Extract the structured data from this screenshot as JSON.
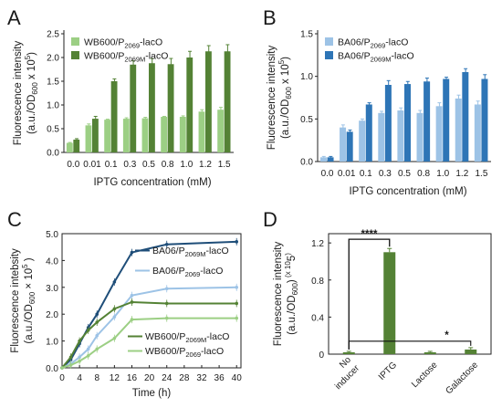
{
  "colors": {
    "green_light": "#9ccf84",
    "green_dark": "#548235",
    "blue_light": "#9dc3e6",
    "blue_dark": "#2e75b6",
    "blue_navy": "#1f4e79",
    "axis": "#222222"
  },
  "chart_data": [
    {
      "panel": "A",
      "type": "bar",
      "categories": [
        "0.0",
        "0.01",
        "0.1",
        "0.3",
        "0.5",
        "0.8",
        "1.0",
        "1.2",
        "1.5"
      ],
      "xlabel": "IPTG concentration (mM)",
      "ylabel": [
        "Fluorescence  intensity",
        "(a.u./OD",
        "600",
        " x 10",
        "5",
        ")"
      ],
      "ylim": [
        0,
        2.5
      ],
      "yticks": [
        "0.0",
        "0.5",
        "1.0",
        "1.5",
        "2.0",
        "2.5"
      ],
      "legend_position": "top-left",
      "series": [
        {
          "name": "WB600/P2069-lacO",
          "name_base": "WB600/P",
          "name_sub": "2069",
          "name_end": "-lacO",
          "color": "green_light",
          "values": [
            0.2,
            0.57,
            0.69,
            0.71,
            0.72,
            0.75,
            0.75,
            0.86,
            0.9
          ],
          "errors": [
            0.01,
            0.03,
            0.01,
            0.02,
            0.02,
            0.01,
            0.02,
            0.04,
            0.05
          ]
        },
        {
          "name": "WB600/P2069M-lacO",
          "name_base": "WB600/P",
          "name_sub": "2069M",
          "name_end": "-lacO",
          "color": "green_dark",
          "values": [
            0.27,
            0.71,
            1.5,
            1.85,
            1.88,
            1.86,
            2.0,
            2.13,
            2.13
          ],
          "errors": [
            0.02,
            0.05,
            0.05,
            0.08,
            0.1,
            0.12,
            0.13,
            0.12,
            0.14
          ]
        }
      ]
    },
    {
      "panel": "B",
      "type": "bar",
      "categories": [
        "0.0",
        "0.01",
        "0.1",
        "0.3",
        "0.5",
        "0.8",
        "1.0",
        "1.2",
        "1.5"
      ],
      "xlabel": "IPTG concentration (mM)",
      "ylabel": [
        "Fluorescence  intensity",
        "(a.u./OD",
        "600",
        " x 10",
        "5",
        ")"
      ],
      "ylim": [
        0,
        1.5
      ],
      "yticks": [
        "0.0",
        "0.5",
        "1.0",
        "1.5"
      ],
      "legend_position": "top-left",
      "series": [
        {
          "name": "BA06/P2069-lacO",
          "name_base": "BA06/P",
          "name_sub": "2069",
          "name_end": "-lacO",
          "color": "blue_light",
          "values": [
            0.05,
            0.4,
            0.48,
            0.57,
            0.6,
            0.57,
            0.65,
            0.74,
            0.67
          ],
          "errors": [
            0.01,
            0.03,
            0.02,
            0.02,
            0.03,
            0.03,
            0.04,
            0.04,
            0.04
          ]
        },
        {
          "name": "BA06/P2069M-lacO",
          "name_base": "BA06/P",
          "name_sub": "2069M",
          "name_end": "-lacO",
          "color": "blue_dark",
          "values": [
            0.05,
            0.35,
            0.67,
            0.9,
            0.91,
            0.94,
            0.97,
            1.05,
            0.97
          ],
          "errors": [
            0.01,
            0.02,
            0.02,
            0.05,
            0.03,
            0.04,
            0.02,
            0.04,
            0.05
          ]
        }
      ]
    },
    {
      "panel": "C",
      "type": "line",
      "xlabel": "Time (h)",
      "ylabel": [
        "Fluorescence intebsity",
        "(a.u./OD",
        "600",
        " × 10",
        "5",
        " )"
      ],
      "xlim": [
        0,
        41
      ],
      "ylim": [
        0,
        5.0
      ],
      "xticks": [
        "0",
        "4",
        "8",
        "12",
        "16",
        "20",
        "24",
        "28",
        "32",
        "36",
        "40"
      ],
      "yticks": [
        "0.0",
        "1.0",
        "2.0",
        "3.0",
        "4.0",
        "5.0"
      ],
      "series": [
        {
          "name": "BA06/P2069M-lacO",
          "name_base": "BA06/P",
          "name_sub": "2069M",
          "name_end": "-lacO",
          "color": "blue_navy",
          "x": [
            0,
            2,
            4,
            6,
            8,
            12,
            16,
            24,
            40
          ],
          "y": [
            0,
            0.3,
            0.9,
            1.5,
            2.0,
            3.2,
            4.3,
            4.6,
            4.7
          ]
        },
        {
          "name": "BA06/P2069-lacO",
          "name_base": "BA06/P",
          "name_sub": "2069",
          "name_end": "-lacO",
          "color": "blue_light",
          "x": [
            0,
            2,
            4,
            6,
            8,
            12,
            16,
            24,
            40
          ],
          "y": [
            0,
            0.15,
            0.4,
            0.7,
            1.2,
            1.9,
            2.7,
            2.95,
            3.0
          ]
        },
        {
          "name": "WB600/P2069M-lacO",
          "name_base": "WB600/P",
          "name_sub": "2069M",
          "name_end": "-lacO",
          "color": "green_dark",
          "x": [
            0,
            2,
            4,
            6,
            8,
            12,
            16,
            24,
            40
          ],
          "y": [
            0,
            0.4,
            1.0,
            1.4,
            1.7,
            2.2,
            2.45,
            2.4,
            2.4
          ]
        },
        {
          "name": "WB600/P2069-lacO",
          "name_base": "WB600/P",
          "name_sub": "2069",
          "name_end": "-lacO",
          "color": "green_light",
          "x": [
            0,
            2,
            4,
            6,
            8,
            12,
            16,
            24,
            40
          ],
          "y": [
            0,
            0.1,
            0.25,
            0.45,
            0.7,
            1.1,
            1.8,
            1.85,
            1.85
          ]
        }
      ]
    },
    {
      "panel": "D",
      "type": "bar",
      "categories": [
        "No\ninducer",
        "IPTG",
        "Lactose",
        "Galactose"
      ],
      "ylabel": [
        "Fluorescence  intensity",
        "(a.u./OD",
        "600",
        ")",
        " (x 10",
        "5",
        ")"
      ],
      "ylim": [
        0,
        1.3
      ],
      "yticks": [
        "0",
        "0.4",
        "0.8",
        "1.2"
      ],
      "values": [
        0.02,
        1.1,
        0.02,
        0.05
      ],
      "errors": [
        0.01,
        0.04,
        0.01,
        0.02
      ],
      "color": "green_dark",
      "annotations": [
        {
          "label": "****",
          "between": [
            "No\ninducer",
            "IPTG"
          ]
        },
        {
          "label": "*",
          "between": [
            "No\ninducer",
            "Galactose"
          ]
        }
      ]
    }
  ],
  "panel_labels": [
    "A",
    "B",
    "C",
    "D"
  ]
}
